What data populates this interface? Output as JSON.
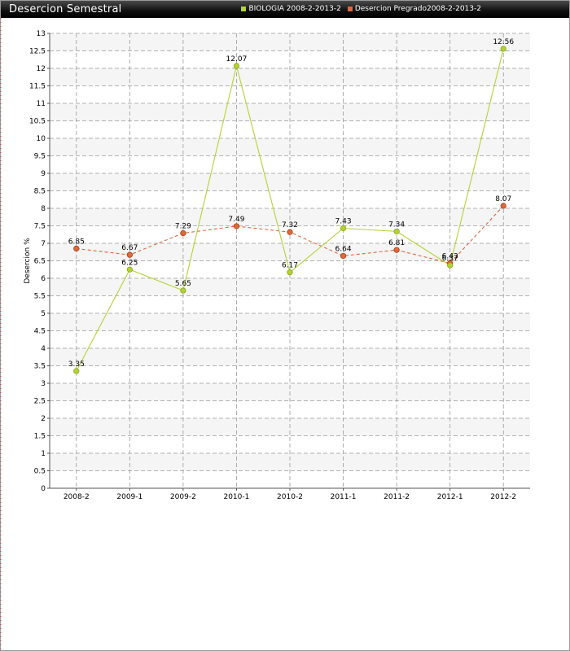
{
  "window": {
    "title": "Desercion Semestral"
  },
  "chart_data": {
    "type": "line",
    "title": "Desercion Semestral",
    "xlabel": "",
    "ylabel": "Desercion %",
    "categories": [
      "2008-2",
      "2009-1",
      "2009-2",
      "2010-1",
      "2010-2",
      "2011-1",
      "2011-2",
      "2012-1",
      "2012-2"
    ],
    "ylim": [
      0,
      13
    ],
    "ytick_step": 0.5,
    "grid": true,
    "legend_position": "top-right",
    "series": [
      {
        "name": "BIOLOGIA 2008-2-2013-2",
        "values": [
          3.35,
          6.25,
          5.65,
          12.07,
          6.17,
          7.43,
          7.34,
          6.37,
          12.56
        ],
        "labels": [
          "3.35",
          "6.25",
          "5.65",
          "12.07",
          "6.17",
          "7.43",
          "7.34",
          "6.37",
          "12.56"
        ],
        "color": "#b3d334",
        "style": "solid"
      },
      {
        "name": "Desercion Pregrado2008-2-2013-2",
        "values": [
          6.85,
          6.67,
          7.29,
          7.49,
          7.32,
          6.64,
          6.81,
          6.43,
          8.07
        ],
        "labels": [
          "6.85",
          "6.67",
          "7.29",
          "7.49",
          "7.32",
          "6.64",
          "6.81",
          "6.43",
          "8.07"
        ],
        "color": "#e2673a",
        "style": "dashed"
      }
    ]
  }
}
